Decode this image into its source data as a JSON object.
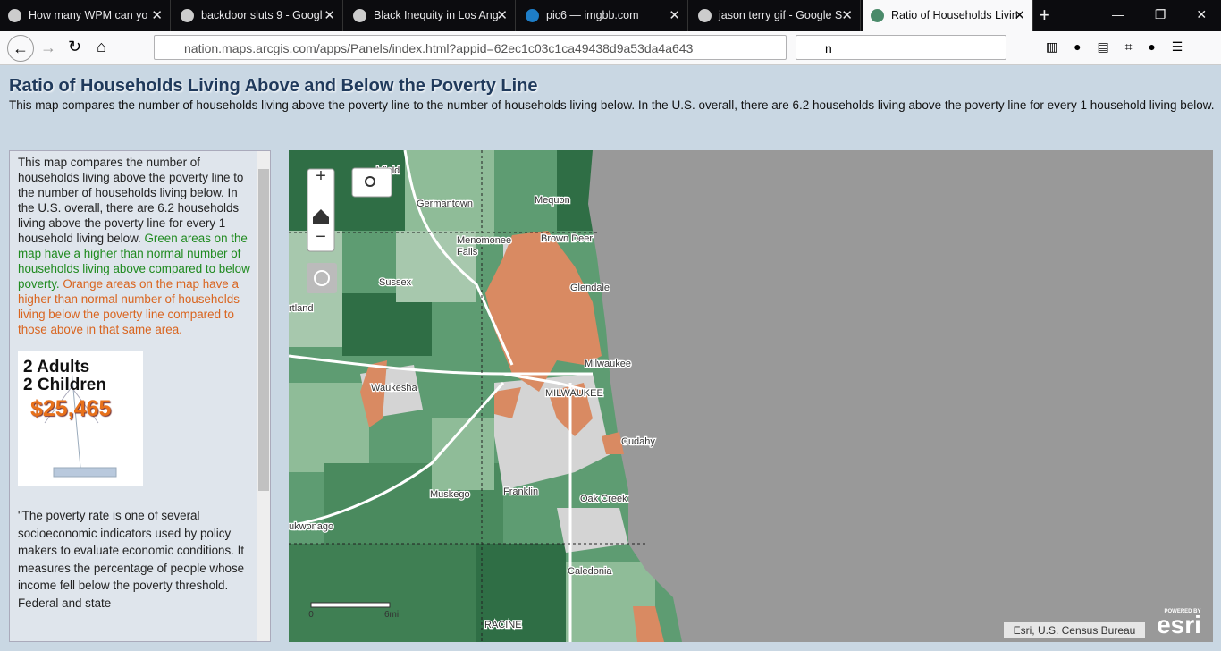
{
  "browser": {
    "tabs": [
      "How many WPM can yo",
      "backdoor sluts 9 - Googl",
      "Black Inequity in Los Ang",
      "pic6 — imgbb.com",
      "jason terry gif - Google S",
      "Ratio of Households Livin"
    ],
    "url": "nation.maps.arcgis.com/apps/Panels/index.html?appid=62ec1c03c1ca49438d9a53da4a643",
    "search": "n"
  },
  "header": {
    "title": "Ratio of Households Living Above and Below the Poverty Line",
    "subtitle": "This map compares the number of households living above the poverty line to the number of households living below. In the U.S. overall, there are 6.2 households living above the poverty line for every 1 household living below."
  },
  "panel": {
    "intro": "This map compares the number of households living above the poverty line to the number of households living below. In the U.S. overall, there are 6.2 households living above the poverty line for every 1 household living below.",
    "green": "Green areas on the map have a higher than normal number of households living above compared to below poverty.",
    "orange": "Orange areas on the map have a higher than normal number of households living below the poverty line compared to those above in that same area.",
    "image": {
      "line1": "2 Adults",
      "line2": "2 Children",
      "amount": "$25,465"
    },
    "quote": "\"The poverty rate is one of several socioeconomic indicators used by policy makers to evaluate economic conditions. It measures the percentage of people whose income fell below the poverty threshold. Federal and state"
  },
  "map": {
    "places": [
      "hfield",
      "Germantown",
      "Mequon",
      "Menomonee",
      "Falls",
      "Brown Deer",
      "Glendale",
      "Sussex",
      "rtland",
      "Milwaukee",
      "MILWAUKEE",
      "Waukesha",
      "Cudahy",
      "Muskego",
      "Franklin",
      "Oak Creek",
      "ukwonago",
      "Caledonia",
      "RACINE"
    ],
    "scale": [
      "0",
      "6mi"
    ],
    "attribution": "Esri, U.S. Census Bureau",
    "powered": "POWERED BY",
    "logo": "esri"
  }
}
